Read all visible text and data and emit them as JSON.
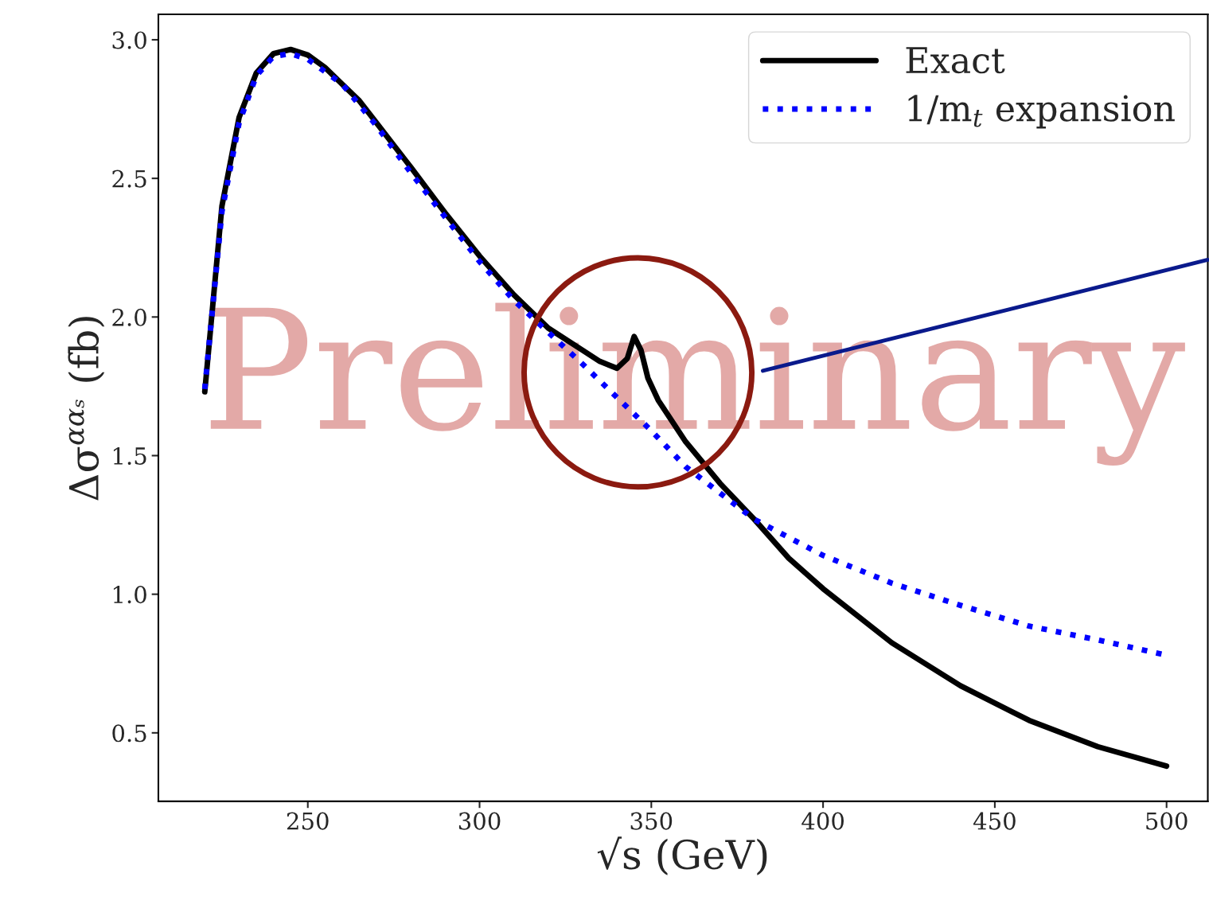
{
  "chart_data": {
    "type": "line",
    "xlabel": "√s (GeV)",
    "ylabel": "Δσ$^{ααₛ}$ (fb)",
    "xlim": [
      206.5,
      512
    ],
    "ylim": [
      0.253,
      3.092
    ],
    "xticks": [
      250,
      300,
      350,
      400,
      450,
      500
    ],
    "yticks": [
      0.5,
      {
        "value": 1,
        "label": "1.0"
      },
      1.5,
      {
        "value": 2,
        "label": "2.0"
      },
      2.5,
      {
        "value": 3,
        "label": "3.0"
      }
    ],
    "grid": false,
    "legend": "top right",
    "annotations": [
      "Preliminary"
    ],
    "series": [
      {
        "name": "Exact",
        "color": "#000000",
        "line_style": "solid",
        "x": [
          220,
          225,
          230,
          235,
          240,
          245,
          250,
          255,
          260,
          265,
          270,
          275,
          280,
          290,
          300,
          310,
          320,
          330,
          335,
          340,
          343,
          345,
          347,
          349,
          352,
          360,
          370,
          380,
          390,
          400,
          420,
          440,
          460,
          480,
          500
        ],
        "values": [
          1.73,
          2.4,
          2.72,
          2.88,
          2.95,
          2.965,
          2.945,
          2.9,
          2.84,
          2.78,
          2.7,
          2.62,
          2.54,
          2.375,
          2.22,
          2.08,
          1.96,
          1.88,
          1.84,
          1.815,
          1.85,
          1.93,
          1.88,
          1.78,
          1.7,
          1.55,
          1.4,
          1.27,
          1.13,
          1.02,
          0.825,
          0.67,
          0.545,
          0.45,
          0.38
        ]
      },
      {
        "name": "1/m$_{t}$ expansion",
        "color": "#0000ff",
        "line_style": "dotted",
        "x": [
          220,
          225,
          230,
          235,
          240,
          245,
          250,
          260,
          270,
          280,
          290,
          300,
          310,
          320,
          330,
          340,
          350,
          360,
          380,
          400,
          420,
          440,
          460,
          480,
          500
        ],
        "values": [
          1.74,
          2.38,
          2.7,
          2.87,
          2.94,
          2.95,
          2.93,
          2.84,
          2.69,
          2.52,
          2.36,
          2.2,
          2.06,
          1.945,
          1.83,
          1.71,
          1.59,
          1.46,
          1.27,
          1.14,
          1.04,
          0.96,
          0.885,
          0.835,
          0.78
        ]
      }
    ]
  }
}
